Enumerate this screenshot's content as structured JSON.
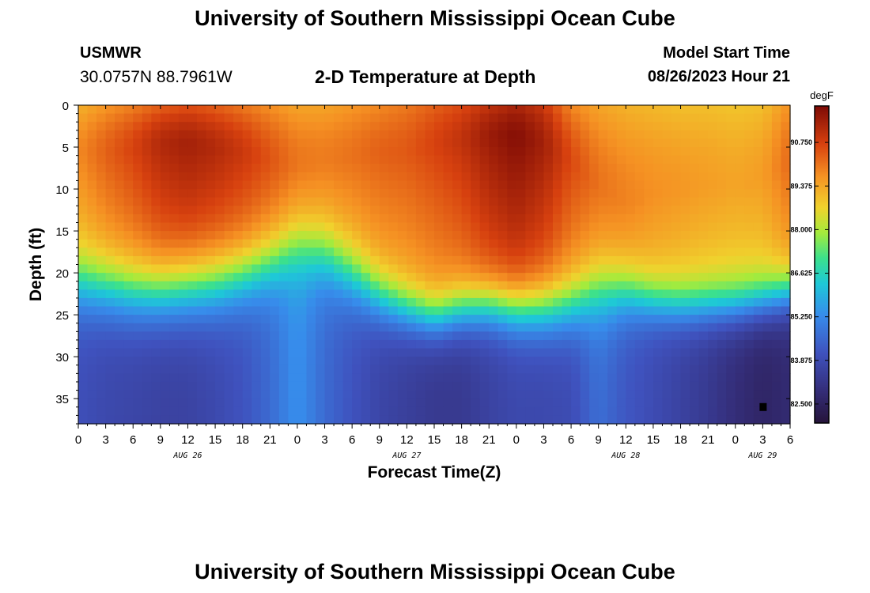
{
  "page": {
    "title_top": "University of Southern Mississippi Ocean Cube",
    "title_bottom": "University of Southern Mississippi Ocean Cube",
    "station": "USMWR",
    "coords": "30.0757N  88.7961W",
    "subtitle": "2-D Temperature at Depth",
    "model_start_label": "Model Start Time",
    "model_start_value": "08/26/2023 Hour 21"
  },
  "chart_data": {
    "type": "heatmap",
    "xlabel": "Forecast Time(Z)",
    "ylabel": "Depth (ft)",
    "colorbar_unit": "degF",
    "colorbar_ticks": [
      82.5,
      83.875,
      85.25,
      86.625,
      88.0,
      89.375,
      90.75
    ],
    "colorbar_tick_labels": [
      "82.500",
      "83.875",
      "85.250",
      "86.625",
      "88.000",
      "89.375",
      "90.750"
    ],
    "vmin": 81.9,
    "vmax": 91.9,
    "x_range": [
      0,
      78
    ],
    "y_range": [
      0,
      38
    ],
    "x_tick_values": [
      0,
      3,
      6,
      9,
      12,
      15,
      18,
      21,
      24,
      27,
      30,
      33,
      36,
      39,
      42,
      45,
      48,
      51,
      54,
      57,
      60,
      63,
      66,
      69,
      72,
      75,
      78
    ],
    "x_tick_labels": [
      "0",
      "3",
      "6",
      "9",
      "12",
      "15",
      "18",
      "21",
      "0",
      "3",
      "6",
      "9",
      "12",
      "15",
      "18",
      "21",
      "0",
      "3",
      "6",
      "9",
      "12",
      "15",
      "18",
      "21",
      "0",
      "3",
      "6"
    ],
    "y_tick_values": [
      0,
      5,
      10,
      15,
      20,
      25,
      30,
      35
    ],
    "y_tick_labels": [
      "0",
      "5",
      "10",
      "15",
      "20",
      "25",
      "30",
      "35"
    ],
    "date_labels": [
      {
        "text": "AUG 26",
        "x": 12
      },
      {
        "text": "AUG 27",
        "x": 36
      },
      {
        "text": "AUG 28",
        "x": 60
      },
      {
        "text": "AUG 29",
        "x": 75
      }
    ],
    "depth_profile_note": "Temperature (degF) at forecast hour (x) for depth levels 0-38 ft, summarized by surface temp, mixed-layer temp, deep temp and layer depths",
    "profiles": {
      "hours": [
        0,
        3,
        6,
        9,
        12,
        15,
        18,
        21,
        24,
        27,
        30,
        33,
        36,
        39,
        42,
        45,
        48,
        51,
        54,
        57,
        60,
        63,
        66,
        69,
        72,
        75,
        78
      ],
      "mixed_temp": [
        89.8,
        90.3,
        90.7,
        91.2,
        91.4,
        91.2,
        90.9,
        90.5,
        90.1,
        90.0,
        90.1,
        90.3,
        90.4,
        90.7,
        91.0,
        91.5,
        91.8,
        91.4,
        90.6,
        90.1,
        89.9,
        89.7,
        89.6,
        89.5,
        89.4,
        89.5,
        90.2
      ],
      "surface_temp": [
        89.2,
        89.6,
        89.9,
        90.3,
        90.5,
        90.3,
        90.0,
        89.7,
        89.4,
        89.4,
        89.6,
        89.8,
        90.0,
        90.3,
        90.6,
        91.0,
        91.3,
        90.9,
        89.8,
        89.4,
        89.2,
        89.1,
        89.0,
        89.0,
        88.9,
        89.0,
        89.7
      ],
      "deep_temp": [
        84.0,
        83.8,
        83.7,
        83.6,
        83.6,
        83.8,
        84.1,
        84.6,
        85.4,
        84.6,
        84.1,
        83.7,
        83.5,
        83.3,
        83.3,
        83.6,
        83.8,
        83.8,
        83.9,
        84.7,
        84.2,
        83.9,
        83.6,
        83.3,
        82.9,
        82.6,
        82.8
      ],
      "grad_mid": [
        21.5,
        22.0,
        22.5,
        22.5,
        22.0,
        21.5,
        20.5,
        19.0,
        17.0,
        18.0,
        20.5,
        23.0,
        24.5,
        25.5,
        24.5,
        24.0,
        24.5,
        24.5,
        24.0,
        22.5,
        22.5,
        23.5,
        24.0,
        24.0,
        24.0,
        23.5,
        22.5
      ],
      "grad_width": [
        12.0,
        12.0,
        12.0,
        12.0,
        12.5,
        12.5,
        12.0,
        12.0,
        12.5,
        12.5,
        12.0,
        10.5,
        9.5,
        9.0,
        9.5,
        9.5,
        10.0,
        10.5,
        11.0,
        12.0,
        10.5,
        9.0,
        9.0,
        9.0,
        9.0,
        9.0,
        9.0
      ],
      "hot_depth": [
        6.0,
        6.0,
        5.5,
        5.0,
        5.0,
        5.5,
        6.0,
        7.0,
        7.5,
        7.0,
        6.5,
        6.0,
        6.0,
        5.0,
        4.5,
        4.0,
        4.0,
        5.0,
        7.0,
        10.0,
        12.0,
        11.0,
        10.5,
        10.0,
        10.0,
        9.0,
        7.0
      ]
    },
    "marker": {
      "x": 75,
      "y": 36
    }
  }
}
